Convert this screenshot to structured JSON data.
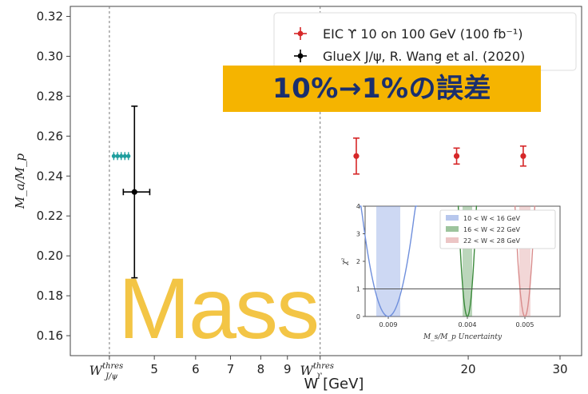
{
  "overlay": {
    "banner_text": "10%→1%の誤差",
    "mass_text": "Mass",
    "banner_color": "#f5b400",
    "banner_text_color": "#1a2f6e",
    "mass_color": "#f3c137"
  },
  "chart_data": [
    {
      "type": "scatter",
      "xlabel": "W [GeV]",
      "ylabel": "M_a/M_p",
      "xscale": "log",
      "xlim": [
        3.45,
        33
      ],
      "ylim": [
        0.15,
        0.325
      ],
      "grid": false,
      "legend_position": "top-right",
      "yticks": [
        "0.16",
        "0.18",
        "0.20",
        "0.22",
        "0.24",
        "0.26",
        "0.28",
        "0.30",
        "0.32"
      ],
      "xticks": [
        {
          "value": 4.1,
          "label": "W",
          "sup": "thres",
          "sub": "J/ψ"
        },
        {
          "value": 5,
          "label": "5"
        },
        {
          "value": 6,
          "label": "6"
        },
        {
          "value": 7,
          "label": "7"
        },
        {
          "value": 8,
          "label": "8"
        },
        {
          "value": 9,
          "label": "9"
        },
        {
          "value": 10.4,
          "label": "W",
          "sup": "thres",
          "sub": "ϒ"
        },
        {
          "value": 20,
          "label": "20"
        },
        {
          "value": 30,
          "label": "30"
        }
      ],
      "vlines": [
        4.1,
        10.4
      ],
      "series": [
        {
          "name": "EIC ϒ 10 on 100 GeV (100 fb⁻¹)",
          "color": "#d62728",
          "points": [
            {
              "x": 12.2,
              "y": 0.25,
              "yerr": 0.009
            },
            {
              "x": 19.0,
              "y": 0.25,
              "yerr": 0.004
            },
            {
              "x": 25.5,
              "y": 0.25,
              "yerr": 0.005
            }
          ]
        },
        {
          "name": "GlueX J/ψ, R. Wang et al. (2020)",
          "color": "#000000",
          "points": [
            {
              "x": 4.58,
              "y": 0.232,
              "yerr": 0.043,
              "xerr_low": 0.22,
              "xerr_high": 0.32
            }
          ]
        },
        {
          "name": "",
          "color": "#1f9e9e",
          "points": [
            {
              "x": 4.18,
              "y": 0.25
            },
            {
              "x": 4.25,
              "y": 0.25
            },
            {
              "x": 4.32,
              "y": 0.25
            },
            {
              "x": 4.39,
              "y": 0.25
            },
            {
              "x": 4.46,
              "y": 0.25
            }
          ]
        }
      ]
    },
    {
      "type": "line",
      "xlabel": "M_s/M_p Uncertainty",
      "ylabel": "χ²",
      "ylim": [
        0,
        4
      ],
      "yticks": [
        "0",
        "1",
        "2",
        "3",
        "4"
      ],
      "xticks": [
        "0.009",
        "0.004",
        "0.005"
      ],
      "hline": 1,
      "legend_position": "top-right",
      "legend": [
        {
          "label": "10 < W < 16 GeV",
          "color": "#6f8fdc"
        },
        {
          "label": "16 < W < 22 GeV",
          "color": "#3b8a3b"
        },
        {
          "label": "22 < W < 28 GeV",
          "color": "#d98c8c"
        }
      ]
    }
  ]
}
